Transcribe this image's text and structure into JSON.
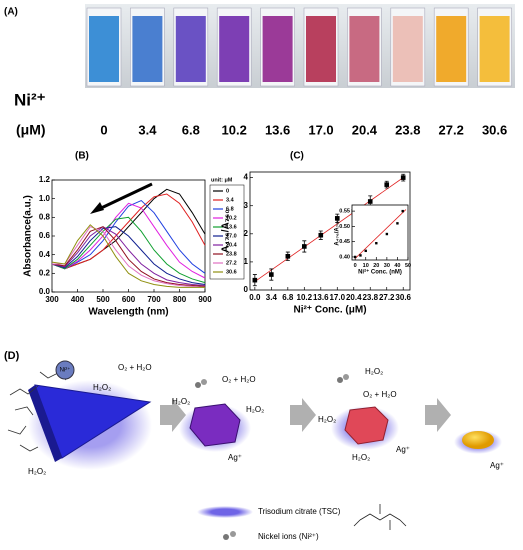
{
  "panel_a": {
    "label": "(A)",
    "ion": "Ni²⁺",
    "unit": "(μM)",
    "vials": [
      {
        "label": "0",
        "color": "#3d8fd6"
      },
      {
        "label": "3.4",
        "color": "#4a7fd0"
      },
      {
        "label": "6.8",
        "color": "#6a52c4"
      },
      {
        "label": "10.2",
        "color": "#7d3fb4"
      },
      {
        "label": "13.6",
        "color": "#9b3a98"
      },
      {
        "label": "17.0",
        "color": "#b8405e"
      },
      {
        "label": "20.4",
        "color": "#c86a82"
      },
      {
        "label": "23.8",
        "color": "#ecc0b8"
      },
      {
        "label": "27.2",
        "color": "#f0aa2c"
      },
      {
        "label": "30.6",
        "color": "#f4be3c"
      }
    ]
  },
  "chart_data": [
    {
      "type": "line",
      "label": "(B)",
      "xlabel": "Wavelength (nm)",
      "ylabel": "Absorbance(a.u.)",
      "x": [
        300,
        350,
        400,
        450,
        500,
        550,
        600,
        650,
        700,
        750,
        800,
        850,
        900
      ],
      "xlim": [
        300,
        900
      ],
      "xticks": [
        300,
        400,
        500,
        600,
        700,
        800,
        900
      ],
      "ylim": [
        0,
        1.2
      ],
      "yticks": [
        {
          "value": 0,
          "label": "0.0"
        },
        0.2,
        0.4,
        0.6,
        0.8,
        {
          "value": 1,
          "label": "1.0"
        },
        1.2
      ],
      "legend_title": "unit: μM",
      "legend": "right",
      "series": [
        {
          "name": "0",
          "color": "#000000",
          "values": [
            0.3,
            0.25,
            0.3,
            0.35,
            0.45,
            0.55,
            0.7,
            0.85,
            1.0,
            1.1,
            1.05,
            0.85,
            0.62
          ]
        },
        {
          "name": "3.4",
          "color": "#e02020",
          "values": [
            0.3,
            0.25,
            0.3,
            0.35,
            0.45,
            0.6,
            0.75,
            0.9,
            1.02,
            1.05,
            0.95,
            0.75,
            0.5
          ]
        },
        {
          "name": "6.8",
          "color": "#2040e0",
          "values": [
            0.3,
            0.25,
            0.32,
            0.4,
            0.55,
            0.75,
            0.92,
            0.98,
            0.85,
            0.65,
            0.45,
            0.3,
            0.2
          ]
        },
        {
          "name": "10.2",
          "color": "#e020e0",
          "values": [
            0.3,
            0.25,
            0.33,
            0.45,
            0.6,
            0.8,
            0.95,
            0.9,
            0.7,
            0.5,
            0.32,
            0.22,
            0.15
          ]
        },
        {
          "name": "13.6",
          "color": "#10a030",
          "values": [
            0.3,
            0.25,
            0.35,
            0.5,
            0.65,
            0.78,
            0.8,
            0.65,
            0.45,
            0.3,
            0.2,
            0.14,
            0.1
          ]
        },
        {
          "name": "17.0",
          "color": "#102090",
          "values": [
            0.3,
            0.26,
            0.38,
            0.55,
            0.68,
            0.7,
            0.6,
            0.45,
            0.3,
            0.2,
            0.14,
            0.1,
            0.08
          ]
        },
        {
          "name": "20.4",
          "color": "#8020a0",
          "values": [
            0.3,
            0.27,
            0.42,
            0.6,
            0.7,
            0.62,
            0.45,
            0.3,
            0.2,
            0.13,
            0.1,
            0.08,
            0.07
          ]
        },
        {
          "name": "23.8",
          "color": "#901020",
          "values": [
            0.3,
            0.28,
            0.45,
            0.65,
            0.7,
            0.55,
            0.35,
            0.22,
            0.14,
            0.1,
            0.08,
            0.07,
            0.06
          ]
        },
        {
          "name": "27.2",
          "color": "#e070c0",
          "values": [
            0.3,
            0.3,
            0.5,
            0.7,
            0.65,
            0.45,
            0.28,
            0.18,
            0.12,
            0.09,
            0.07,
            0.06,
            0.05
          ]
        },
        {
          "name": "30.6",
          "color": "#909010",
          "values": [
            0.32,
            0.3,
            0.55,
            0.72,
            0.6,
            0.38,
            0.2,
            0.12,
            0.08,
            0.06,
            0.05,
            0.05,
            0.05
          ]
        }
      ]
    },
    {
      "type": "scatter",
      "label": "(C)",
      "xlabel": "Ni²⁺ Conc. (μM)",
      "ylabel": "A₄₇₆/A₇₆₀",
      "x": [
        0,
        3.4,
        6.8,
        10.2,
        13.6,
        17,
        20.4,
        23.8,
        27.2,
        30.6
      ],
      "values": [
        0.35,
        0.55,
        1.2,
        1.55,
        1.95,
        2.55,
        2.8,
        3.15,
        3.75,
        4.0
      ],
      "errors": [
        0.2,
        0.2,
        0.15,
        0.2,
        0.15,
        0.15,
        0.15,
        0.2,
        0.12,
        0.12
      ],
      "xlim": [
        -1,
        32
      ],
      "xticks": [
        {
          "value": 0,
          "label": "0.0"
        },
        3.4,
        6.8,
        10.2,
        13.6,
        {
          "value": 17,
          "label": "17.0"
        },
        20.4,
        23.8,
        27.2,
        30.6
      ],
      "ylim": [
        0,
        4.2
      ],
      "yticks": [
        0,
        1,
        2,
        3,
        4
      ],
      "color": "#000000",
      "fit": {
        "x": [
          0,
          30.6
        ],
        "values": [
          0.3,
          4.0
        ],
        "color": "#e02020"
      }
    },
    {
      "type": "scatter",
      "xlabel": "Ni²⁺ Conc. (nM)",
      "ylabel": "A₄₇₆/A₇₆₀",
      "x": [
        0,
        5,
        10,
        20,
        30,
        40,
        45
      ],
      "values": [
        0.4,
        0.405,
        0.42,
        0.445,
        0.475,
        0.51,
        0.55
      ],
      "xlim": [
        -3,
        50
      ],
      "xticks": [
        0,
        10,
        20,
        30,
        40,
        50
      ],
      "ylim": [
        0.39,
        0.57
      ],
      "yticks": [
        {
          "value": 0.4,
          "label": "0.40"
        },
        0.45,
        {
          "value": 0.5,
          "label": "0.50"
        },
        0.55
      ],
      "color": "#000000",
      "fit": {
        "x": [
          0,
          48
        ],
        "values": [
          0.395,
          0.555
        ],
        "color": "#e02020"
      }
    }
  ],
  "panel_d": {
    "label": "(D)",
    "texts": [
      "Ni²⁺",
      "O₂ + H₂O",
      "H₂O₂",
      "H₂O₂",
      "H₂O₂",
      "O₂ + H₂O",
      "H₂O₂",
      "Ag⁺",
      "H₂O₂",
      "O₂ + H₂O",
      "H₂O₂",
      "H₂O₂",
      "Ag⁺",
      "Ag⁺"
    ],
    "legend": [
      "Trisodium citrate (TSC)",
      "Nickel ions (Ni²⁺)"
    ]
  }
}
